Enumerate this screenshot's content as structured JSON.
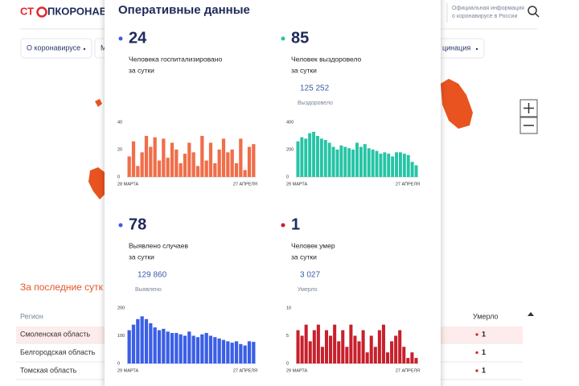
{
  "header": {
    "logo_left": "СТ",
    "logo_right": "ПКОРОНАВИ",
    "info_line1": "Официальная информация",
    "info_line2": "о коронавирусе в России"
  },
  "nav": {
    "item0": "О коронавирусе",
    "item1": "М",
    "item2": "цинация"
  },
  "table": {
    "title": "За последние сутк",
    "col_region": "Регион",
    "col_died": "Умерло",
    "rows": [
      [
        "Смоленская область",
        "1"
      ],
      [
        "Белгородская область",
        "1"
      ],
      [
        "Томская область",
        "1"
      ]
    ]
  },
  "panel": {
    "title": "Оперативные данные",
    "cards": [
      {
        "value": 24,
        "line1": "Человека госпитализировано",
        "line2": "за сутки"
      },
      {
        "value": 85,
        "line1": "Человек выздоровело",
        "line2": "за сутки",
        "total": "125 252",
        "total_label": "Выздоровело"
      },
      {
        "value": 78,
        "line1": "Выявлено случаев",
        "line2": "за сутки",
        "total": "129 860",
        "total_label": "Выявлено"
      },
      {
        "value": 1,
        "line1": "Человек умер",
        "line2": "за сутки",
        "total": "3 027",
        "total_label": "Умерло"
      }
    ]
  },
  "chart_data": [
    {
      "type": "bar",
      "color": "#f06e4a",
      "ylim": [
        0,
        40
      ],
      "yticks": [
        0,
        20,
        40
      ],
      "categories": [
        "28 МАРТА",
        null,
        null,
        null,
        null,
        null,
        null,
        null,
        null,
        null,
        null,
        null,
        null,
        null,
        null,
        null,
        null,
        null,
        null,
        null,
        null,
        null,
        null,
        null,
        null,
        null,
        null,
        null,
        null,
        "27 АПРЕЛЯ"
      ],
      "values": [
        15,
        26,
        8,
        18,
        30,
        22,
        29,
        12,
        28,
        14,
        25,
        20,
        10,
        17,
        25,
        18,
        8,
        30,
        12,
        25,
        10,
        20,
        28,
        18,
        20,
        10,
        28,
        5,
        22,
        24
      ]
    },
    {
      "type": "bar",
      "color": "#26c4a6",
      "ylim": [
        0,
        400
      ],
      "yticks": [
        0,
        200,
        400
      ],
      "categories": [
        "29 МАРТА",
        null,
        null,
        null,
        null,
        null,
        null,
        null,
        null,
        null,
        null,
        null,
        null,
        null,
        null,
        null,
        null,
        null,
        null,
        null,
        null,
        null,
        null,
        null,
        null,
        null,
        null,
        null,
        null,
        null,
        "27 АПРЕЛЯ"
      ],
      "values": [
        260,
        290,
        280,
        320,
        330,
        300,
        280,
        270,
        250,
        220,
        200,
        230,
        220,
        210,
        200,
        250,
        220,
        240,
        210,
        200,
        190,
        170,
        180,
        170,
        150,
        180,
        180,
        170,
        160,
        110,
        85
      ]
    },
    {
      "type": "bar",
      "color": "#3b5ee6",
      "ylim": [
        0,
        200
      ],
      "yticks": [
        0,
        100,
        200
      ],
      "categories": [
        "29 МАРТА",
        null,
        null,
        null,
        null,
        null,
        null,
        null,
        null,
        null,
        null,
        null,
        null,
        null,
        null,
        null,
        null,
        null,
        null,
        null,
        null,
        null,
        null,
        null,
        null,
        null,
        null,
        null,
        null,
        "27 АПРЕЛЯ"
      ],
      "values": [
        120,
        140,
        160,
        170,
        160,
        145,
        130,
        120,
        125,
        115,
        110,
        110,
        105,
        100,
        115,
        100,
        95,
        105,
        110,
        100,
        95,
        90,
        85,
        80,
        75,
        80,
        70,
        65,
        80,
        78
      ]
    },
    {
      "type": "bar",
      "color": "#c8202c",
      "ylim": [
        0,
        10
      ],
      "yticks": [
        0,
        5,
        10
      ],
      "categories": [
        "29 МАРТА",
        null,
        null,
        null,
        null,
        null,
        null,
        null,
        null,
        null,
        null,
        null,
        null,
        null,
        null,
        null,
        null,
        null,
        null,
        null,
        null,
        null,
        null,
        null,
        null,
        null,
        null,
        null,
        null,
        "27 АПРЕЛЯ"
      ],
      "values": [
        6,
        5,
        7,
        4,
        6,
        7,
        3,
        6,
        5,
        7,
        4,
        6,
        3,
        7,
        5,
        4,
        6,
        2,
        5,
        3,
        6,
        7,
        2,
        4,
        5,
        6,
        3,
        1,
        2,
        1
      ]
    }
  ]
}
